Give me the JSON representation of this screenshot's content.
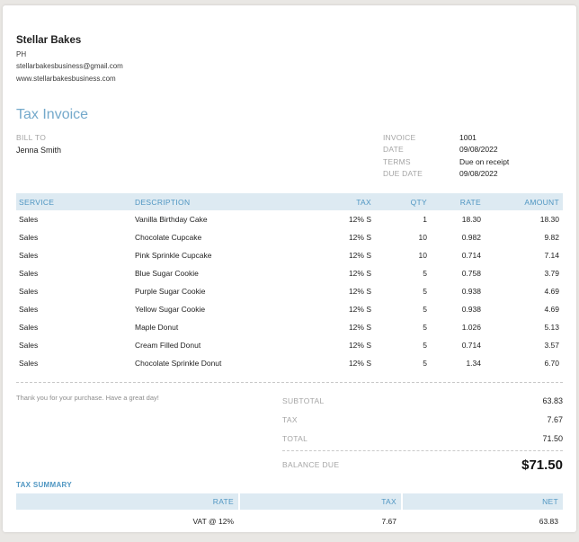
{
  "business": {
    "name": "Stellar Bakes",
    "phone_line": "PH",
    "email": "stellarbakesbusiness@gmail.com",
    "website": "www.stellarbakesbusiness.com"
  },
  "document": {
    "title": "Tax Invoice"
  },
  "bill_to": {
    "label": "BILL TO",
    "name": "Jenna Smith"
  },
  "invoice_meta": [
    {
      "label": "INVOICE",
      "value": "1001"
    },
    {
      "label": "DATE",
      "value": "09/08/2022"
    },
    {
      "label": "TERMS",
      "value": "Due on receipt"
    },
    {
      "label": "DUE DATE",
      "value": "09/08/2022"
    }
  ],
  "items_table": {
    "headers": [
      "SERVICE",
      "DESCRIPTION",
      "TAX",
      "QTY",
      "RATE",
      "AMOUNT"
    ],
    "rows": [
      {
        "service": "Sales",
        "description": "Vanilla Birthday Cake",
        "tax": "12% S",
        "qty": "1",
        "rate": "18.30",
        "amount": "18.30"
      },
      {
        "service": "Sales",
        "description": "Chocolate Cupcake",
        "tax": "12% S",
        "qty": "10",
        "rate": "0.982",
        "amount": "9.82"
      },
      {
        "service": "Sales",
        "description": "Pink Sprinkle Cupcake",
        "tax": "12% S",
        "qty": "10",
        "rate": "0.714",
        "amount": "7.14"
      },
      {
        "service": "Sales",
        "description": "Blue Sugar Cookie",
        "tax": "12% S",
        "qty": "5",
        "rate": "0.758",
        "amount": "3.79"
      },
      {
        "service": "Sales",
        "description": "Purple Sugar Cookie",
        "tax": "12% S",
        "qty": "5",
        "rate": "0.938",
        "amount": "4.69"
      },
      {
        "service": "Sales",
        "description": "Yellow Sugar Cookie",
        "tax": "12% S",
        "qty": "5",
        "rate": "0.938",
        "amount": "4.69"
      },
      {
        "service": "Sales",
        "description": "Maple Donut",
        "tax": "12% S",
        "qty": "5",
        "rate": "1.026",
        "amount": "5.13"
      },
      {
        "service": "Sales",
        "description": "Cream Filled Donut",
        "tax": "12% S",
        "qty": "5",
        "rate": "0.714",
        "amount": "3.57"
      },
      {
        "service": "Sales",
        "description": "Chocolate Sprinkle Donut",
        "tax": "12% S",
        "qty": "5",
        "rate": "1.34",
        "amount": "6.70"
      }
    ]
  },
  "footer": {
    "note": "Thank you for your purchase. Have a great day!"
  },
  "totals": {
    "subtotal_label": "SUBTOTAL",
    "subtotal": "63.83",
    "tax_label": "TAX",
    "tax": "7.67",
    "total_label": "TOTAL",
    "total": "71.50",
    "balance_due_label": "BALANCE DUE",
    "balance_due": "$71.50"
  },
  "tax_summary": {
    "title": "TAX SUMMARY",
    "headers": [
      "RATE",
      "TAX",
      "NET"
    ],
    "rows": [
      {
        "rate": "VAT @ 12%",
        "tax": "7.67",
        "net": "63.83"
      }
    ]
  },
  "colors": {
    "accent_blue": "#4f96c2",
    "title_blue": "#74a9cb",
    "table_header_band": "#ddeaf2",
    "label_gray": "#a5a5a5",
    "text_dark": "#1f1f1f",
    "page_background": "#e9e7e4"
  }
}
